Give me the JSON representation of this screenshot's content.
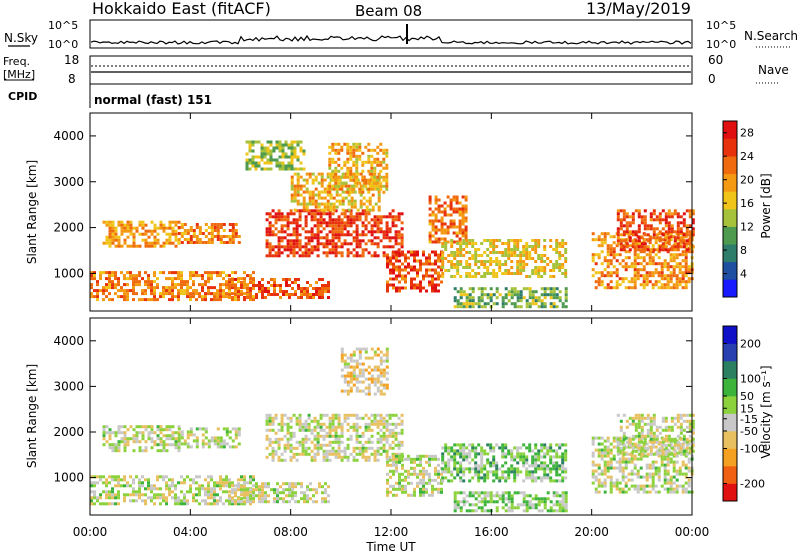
{
  "header": {
    "title": "Hokkaido East (fitACF)",
    "beam": "Beam 08",
    "date": "13/May/2019"
  },
  "params": {
    "nsky_label": "N.Sky",
    "nsearch_label": "N.Search",
    "freq_label_line1": "Freq.",
    "freq_label_line2": "[MHz]",
    "nave_label": "Nave",
    "cpid_label": "CPID",
    "cpid_value": "normal (fast) 151",
    "noise_ticks": [
      "10^5",
      "10^0"
    ],
    "freq_ticks_left": [
      "18",
      "8"
    ],
    "nave_ticks_right": [
      "60",
      "0"
    ]
  },
  "colors": {
    "power_scale": [
      "#1a1aff",
      "#1f4fa0",
      "#2e7d6b",
      "#4e9a4e",
      "#a6c23a",
      "#f0c419",
      "#f49a12",
      "#f06b0d",
      "#e8320c",
      "#e01010"
    ],
    "velocity_scale": [
      "#e01010",
      "#f06010",
      "#f4a020",
      "#e8c060",
      "#c8c8c8",
      "#8cd23c",
      "#3cb43c",
      "#2a8060",
      "#2a40b0",
      "#1010c8"
    ]
  },
  "chart_data": [
    {
      "type": "heatmap",
      "panel": "power",
      "xlabel": "Time UT",
      "ylabel": "Slant Range [km]",
      "x_ticks": [
        "00:00",
        "04:00",
        "08:00",
        "12:00",
        "16:00",
        "20:00",
        "00:00"
      ],
      "x_range_hours": [
        0,
        24
      ],
      "y_ticks": [
        1000,
        2000,
        3000,
        4000
      ],
      "ylim": [
        180,
        4500
      ],
      "colorbar": {
        "label": "Power [dB]",
        "ticks": [
          4,
          8,
          12,
          16,
          20,
          24,
          28
        ],
        "range": [
          0,
          30
        ]
      },
      "regions": [
        {
          "t": [
            0.0,
            6.5
          ],
          "r": [
            450,
            1050
          ],
          "level": 0.7
        },
        {
          "t": [
            0.5,
            3.5
          ],
          "r": [
            1600,
            2150
          ],
          "level": 0.65
        },
        {
          "t": [
            3.5,
            6.0
          ],
          "r": [
            1700,
            2100
          ],
          "level": 0.72
        },
        {
          "t": [
            5.5,
            9.5
          ],
          "r": [
            450,
            900
          ],
          "level": 0.78
        },
        {
          "t": [
            6.2,
            8.5
          ],
          "r": [
            3300,
            3900
          ],
          "level": 0.45
        },
        {
          "t": [
            7.0,
            12.5
          ],
          "r": [
            1400,
            2400
          ],
          "level": 0.85
        },
        {
          "t": [
            8.0,
            11.5
          ],
          "r": [
            2400,
            3200
          ],
          "level": 0.6
        },
        {
          "t": [
            9.5,
            11.8
          ],
          "r": [
            2800,
            3850
          ],
          "level": 0.62
        },
        {
          "t": [
            11.8,
            14.0
          ],
          "r": [
            600,
            1500
          ],
          "level": 0.82
        },
        {
          "t": [
            13.5,
            15.0
          ],
          "r": [
            1700,
            2700
          ],
          "level": 0.74
        },
        {
          "t": [
            14.0,
            19.0
          ],
          "r": [
            900,
            1750
          ],
          "level": 0.55
        },
        {
          "t": [
            14.5,
            19.0
          ],
          "r": [
            250,
            700
          ],
          "level": 0.4
        },
        {
          "t": [
            20.0,
            24.0
          ],
          "r": [
            700,
            1900
          ],
          "level": 0.68
        },
        {
          "t": [
            21.0,
            24.0
          ],
          "r": [
            1500,
            2400
          ],
          "level": 0.8
        }
      ]
    },
    {
      "type": "heatmap",
      "panel": "velocity",
      "xlabel": "Time UT",
      "ylabel": "Slant Range [km]",
      "x_ticks": [
        "00:00",
        "04:00",
        "08:00",
        "12:00",
        "16:00",
        "20:00",
        "00:00"
      ],
      "x_range_hours": [
        0,
        24
      ],
      "y_ticks": [
        1000,
        2000,
        3000,
        4000
      ],
      "ylim": [
        180,
        4500
      ],
      "colorbar": {
        "label": "Velocity [m s⁻¹]",
        "ticks": [
          -200,
          -100,
          -50,
          -15,
          15,
          50,
          100,
          200
        ],
        "range": [
          -250,
          250
        ]
      },
      "regions": [
        {
          "t": [
            0.0,
            6.5
          ],
          "r": [
            450,
            1050
          ],
          "level": 0.47
        },
        {
          "t": [
            0.5,
            3.5
          ],
          "r": [
            1600,
            2150
          ],
          "level": 0.46
        },
        {
          "t": [
            3.5,
            6.0
          ],
          "r": [
            1700,
            2100
          ],
          "level": 0.47
        },
        {
          "t": [
            5.5,
            9.5
          ],
          "r": [
            450,
            900
          ],
          "level": 0.47
        },
        {
          "t": [
            7.0,
            12.5
          ],
          "r": [
            1400,
            2400
          ],
          "level": 0.46
        },
        {
          "t": [
            10.0,
            11.8
          ],
          "r": [
            2800,
            3850
          ],
          "level": 0.38
        },
        {
          "t": [
            11.8,
            14.0
          ],
          "r": [
            600,
            1500
          ],
          "level": 0.47
        },
        {
          "t": [
            14.0,
            19.0
          ],
          "r": [
            900,
            1750
          ],
          "level": 0.58
        },
        {
          "t": [
            14.5,
            19.0
          ],
          "r": [
            250,
            700
          ],
          "level": 0.55
        },
        {
          "t": [
            20.0,
            24.0
          ],
          "r": [
            700,
            1900
          ],
          "level": 0.47
        },
        {
          "t": [
            21.0,
            24.0
          ],
          "r": [
            1500,
            2400
          ],
          "level": 0.46
        }
      ]
    }
  ]
}
